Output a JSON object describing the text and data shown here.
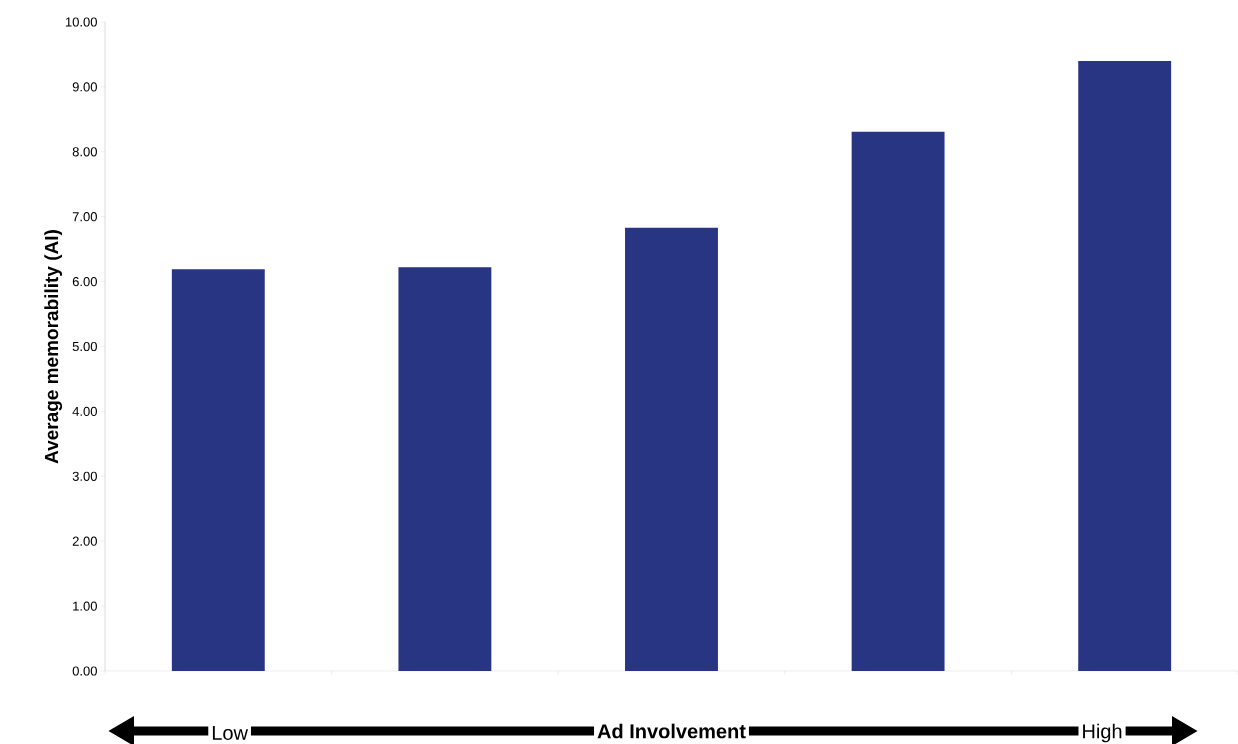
{
  "chart_data": {
    "type": "bar",
    "xlabel": "Ad Involvement",
    "ylabel": "Average memorability (AI)",
    "categories": [
      null,
      null,
      null,
      null,
      null
    ],
    "values": [
      6.19,
      6.22,
      6.83,
      8.31,
      9.4
    ],
    "color": "#283583",
    "ylim": [
      0,
      10
    ],
    "yticks": [
      {
        "value": 0,
        "label": "0.00"
      },
      {
        "value": 1,
        "label": "1.00"
      },
      {
        "value": 2,
        "label": "2.00"
      },
      {
        "value": 3,
        "label": "3.00"
      },
      {
        "value": 4,
        "label": "4.00"
      },
      {
        "value": 5,
        "label": "5.00"
      },
      {
        "value": 6,
        "label": "6.00"
      },
      {
        "value": 7,
        "label": "7.00"
      },
      {
        "value": 8,
        "label": "8.00"
      },
      {
        "value": 9,
        "label": "9.00"
      },
      {
        "value": 10,
        "label": "10.00"
      }
    ],
    "annotations": [
      "Low",
      "High"
    ]
  }
}
